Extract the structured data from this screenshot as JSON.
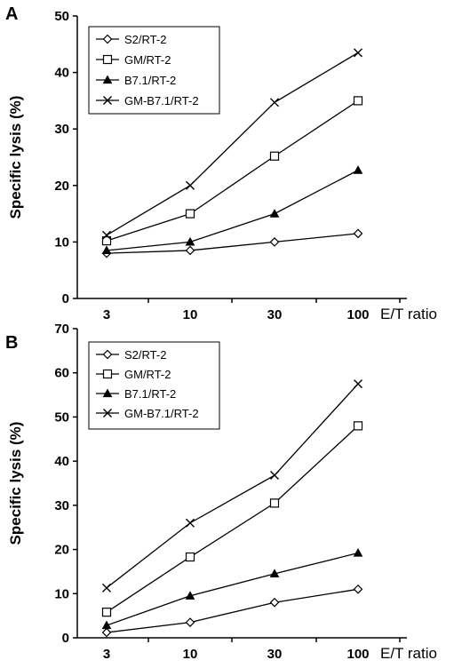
{
  "chart_data": [
    {
      "panel": "A",
      "type": "line",
      "categories": [
        "3",
        "10",
        "30",
        "100"
      ],
      "xlabel": "E/T ratio",
      "ylabel": "Specific lysis (%)",
      "ylim": [
        0,
        50
      ],
      "yticks": [
        0,
        10,
        20,
        30,
        40,
        50
      ],
      "legend_position": "top-left",
      "grid": false,
      "series": [
        {
          "name": "S2/RT-2",
          "marker": "open-diamond",
          "values": [
            8,
            8.5,
            10,
            11.5
          ]
        },
        {
          "name": "GM/RT-2",
          "marker": "open-square",
          "values": [
            10.2,
            15,
            25.2,
            35
          ]
        },
        {
          "name": "B7.1/RT-2",
          "marker": "filled-triangle",
          "values": [
            8.5,
            10,
            15,
            22.7
          ]
        },
        {
          "name": "GM-B7.1/RT-2",
          "marker": "cross",
          "values": [
            11.2,
            20,
            34.7,
            43.5
          ]
        }
      ]
    },
    {
      "panel": "B",
      "type": "line",
      "categories": [
        "3",
        "10",
        "30",
        "100"
      ],
      "xlabel": "E/T ratio",
      "ylabel": "Specific lysis (%)",
      "ylim": [
        0,
        70
      ],
      "yticks": [
        0,
        10,
        20,
        30,
        40,
        50,
        60,
        70
      ],
      "legend_position": "top-left",
      "grid": false,
      "series": [
        {
          "name": "S2/RT-2",
          "marker": "open-diamond",
          "values": [
            1.2,
            3.5,
            8,
            11
          ]
        },
        {
          "name": "GM/RT-2",
          "marker": "open-square",
          "values": [
            5.8,
            18.3,
            30.5,
            48
          ]
        },
        {
          "name": "B7.1/RT-2",
          "marker": "filled-triangle",
          "values": [
            2.8,
            9.5,
            14.5,
            19.2
          ]
        },
        {
          "name": "GM-B7.1/RT-2",
          "marker": "cross",
          "values": [
            11.3,
            26,
            36.8,
            57.5
          ]
        }
      ]
    }
  ]
}
